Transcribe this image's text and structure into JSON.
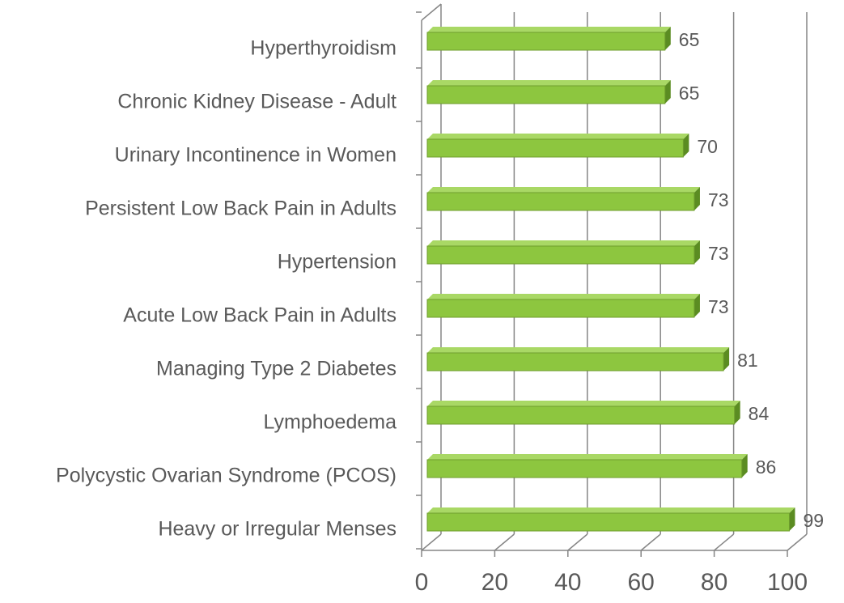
{
  "chart_data": {
    "type": "bar",
    "orientation": "horizontal",
    "categories": [
      "Hyperthyroidism",
      "Chronic Kidney Disease - Adult",
      "Urinary Incontinence in Women",
      "Persistent Low Back Pain in Adults",
      "Hypertension",
      "Acute Low Back Pain in Adults",
      "Managing Type 2 Diabetes",
      "Lymphoedema",
      "Polycystic Ovarian Syndrome (PCOS)",
      "Heavy or Irregular Menses"
    ],
    "values": [
      65,
      65,
      70,
      73,
      73,
      73,
      81,
      84,
      86,
      99
    ],
    "color": "#8dc63f",
    "xlim": [
      0,
      100
    ],
    "xticks": [
      0,
      20,
      40,
      60,
      80,
      100
    ],
    "grid": true
  }
}
